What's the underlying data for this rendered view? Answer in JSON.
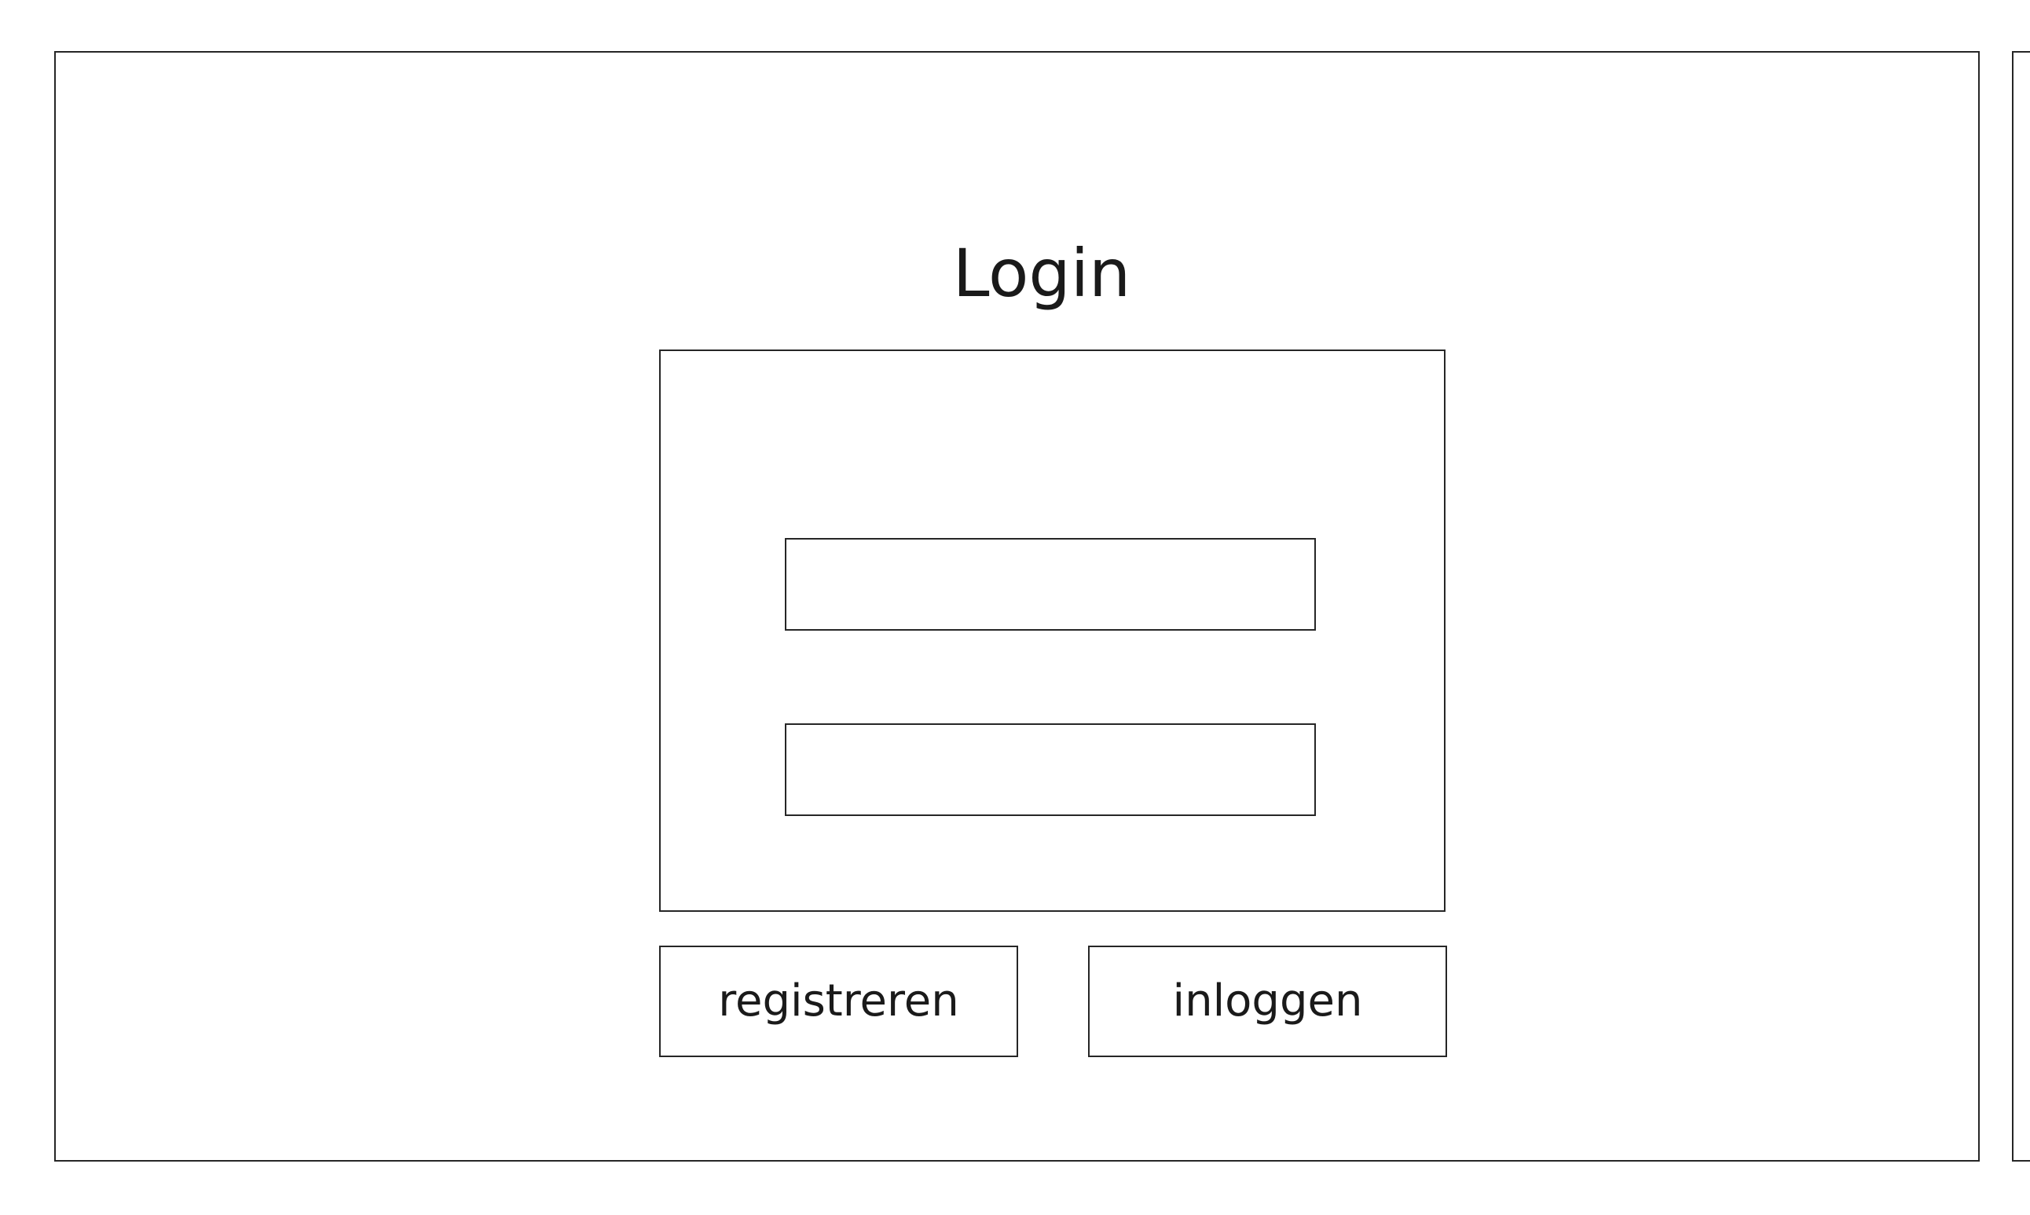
{
  "login": {
    "title": "Login",
    "username_field": {
      "value": "",
      "placeholder": ""
    },
    "password_field": {
      "value": "",
      "placeholder": ""
    },
    "register_button_label": "registreren",
    "login_button_label": "inloggen"
  }
}
